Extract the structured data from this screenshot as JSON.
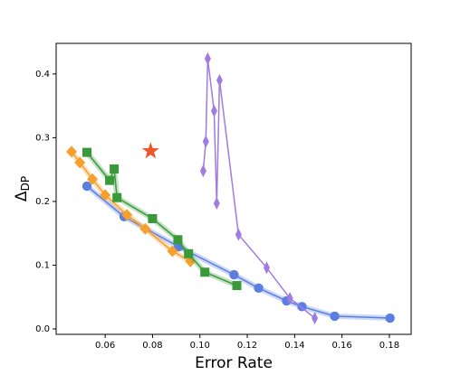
{
  "chart_data": {
    "type": "line",
    "xlabel": "Error Rate",
    "ylabel": {
      "text": "Δ",
      "subscript": "DP"
    },
    "xlim": [
      0.0393,
      0.1892
    ],
    "ylim": [
      -0.0085,
      0.448
    ],
    "xticks": [
      {
        "value": 0.06,
        "label": "0.06"
      },
      {
        "value": 0.08,
        "label": "0.08"
      },
      {
        "value": 0.1,
        "label": "0.10"
      },
      {
        "value": 0.12,
        "label": "0.12"
      },
      {
        "value": 0.14,
        "label": "0.14"
      },
      {
        "value": 0.16,
        "label": "0.16"
      },
      {
        "value": 0.18,
        "label": "0.18"
      }
    ],
    "yticks": [
      {
        "value": 0,
        "label": "0.0"
      },
      {
        "value": 0.1,
        "label": "0.1"
      },
      {
        "value": 0.2,
        "label": "0.2"
      },
      {
        "value": 0.3,
        "label": "0.3"
      },
      {
        "value": 0.4,
        "label": "0.4"
      }
    ],
    "series": [
      {
        "color": "#5b7fe0",
        "marker": "circle",
        "band": true,
        "x": [
          0.0523,
          0.068,
          0.091,
          0.1144,
          0.1248,
          0.1366,
          0.1431,
          0.1569,
          0.1803
        ],
        "values": [
          0.224,
          0.176,
          0.129,
          0.085,
          0.064,
          0.044,
          0.035,
          0.02,
          0.017
        ]
      },
      {
        "color": "#f5a02a",
        "marker": "diamond",
        "band": true,
        "x": [
          0.0458,
          0.0493,
          0.0546,
          0.06,
          0.0692,
          0.0769,
          0.0884,
          0.096
        ],
        "values": [
          0.278,
          0.261,
          0.235,
          0.21,
          0.179,
          0.157,
          0.122,
          0.106
        ]
      },
      {
        "color": "#3a9a3a",
        "marker": "square",
        "band": true,
        "x": [
          0.0523,
          0.0619,
          0.0638,
          0.065,
          0.08,
          0.0907,
          0.0952,
          0.1021,
          0.1156
        ],
        "values": [
          0.277,
          0.233,
          0.251,
          0.206,
          0.173,
          0.14,
          0.118,
          0.089,
          0.068
        ]
      },
      {
        "color": "#a07be0",
        "marker": "thin_diamond",
        "band": false,
        "x": [
          0.1014,
          0.1025,
          0.1033,
          0.106,
          0.1071,
          0.1083,
          0.1163,
          0.1282,
          0.138,
          0.1485
        ],
        "values": [
          0.248,
          0.294,
          0.424,
          0.342,
          0.197,
          0.39,
          0.148,
          0.096,
          0.048,
          0.017
        ]
      },
      {
        "color": "#f0562a",
        "marker": "star",
        "line": false,
        "x": [
          0.0792
        ],
        "values": [
          0.279
        ]
      }
    ]
  }
}
